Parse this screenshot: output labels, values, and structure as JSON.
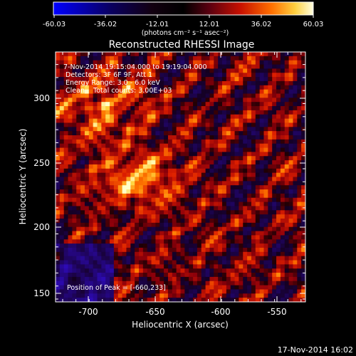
{
  "colorbar": {
    "ticks": [
      "-60.03",
      "-36.02",
      "-12.01",
      "12.01",
      "36.02",
      "60.03"
    ],
    "unit_label": "(photons cm⁻² s⁻¹ asec⁻²)"
  },
  "image_title": "Reconstructed RHESSI Image",
  "annotations": {
    "time_range": "7-Nov-2014 19:15:04.000 to 19:19:04.000",
    "detectors": "Detectors: 3F 6F 9F, Att 1",
    "energy_range": "Energy Range: 3.0 - 6.0 keV",
    "clean": "Clean    Total counts: 3.00E+03",
    "peak_position": "Position of Peak = [-660,233]"
  },
  "axes": {
    "xlabel": "Heliocentric X (arcsec)",
    "ylabel": "Heliocentric Y (arcsec)",
    "xticks": [
      "-700",
      "-650",
      "-600",
      "-550"
    ],
    "yticks": [
      "150",
      "200",
      "250",
      "300"
    ]
  },
  "footer_timestamp": "17-Nov-2014 16:02",
  "colors": {
    "background": "#000000",
    "text": "#ffffff"
  }
}
